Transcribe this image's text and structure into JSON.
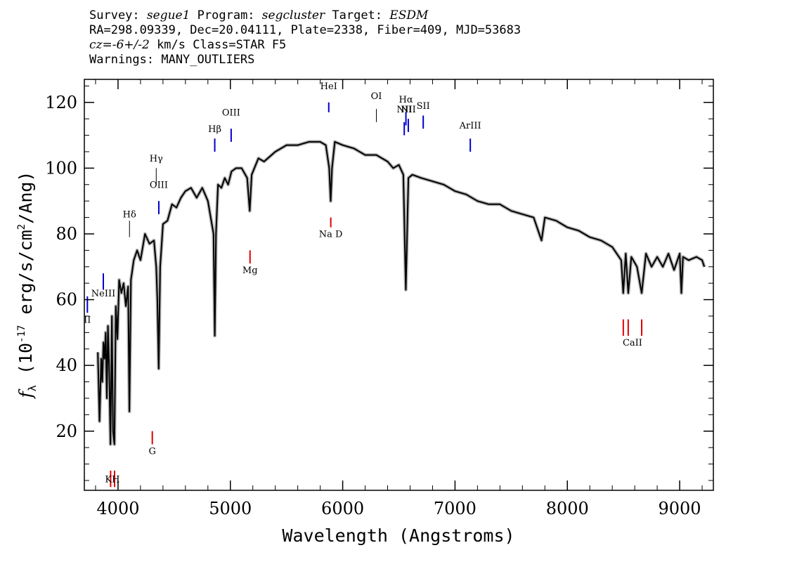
{
  "header": {
    "line1": {
      "survey_label": "Survey:",
      "survey": "segue1",
      "program_label": "Program:",
      "program": "segcluster",
      "target_label": "Target:",
      "target": "ESDM"
    },
    "line2": "RA=298.09339, Dec=20.04111, Plate=2338, Fiber=409, MJD=53683",
    "line3": {
      "cz": "cz=-6+/-2",
      "rest": " km/s Class=STAR F5"
    },
    "line4": "Warnings: MANY_OUTLIERS"
  },
  "colors": {
    "spectrum": "#000000",
    "error": "#b4b4b4",
    "emission": "#0000cc",
    "absorption": "#dd0000"
  },
  "chart_data": {
    "type": "line",
    "xlabel": "Wavelength (Angstroms)",
    "ylabel": "f_λ (10^-17 erg/s/cm^2/Ang)",
    "xlim": [
      3700,
      9300
    ],
    "ylim": [
      2,
      127
    ],
    "x_ticks": [
      4000,
      5000,
      6000,
      7000,
      8000,
      9000
    ],
    "y_ticks": [
      20,
      40,
      60,
      80,
      100,
      120
    ],
    "grid": false,
    "series": [
      {
        "x": [
          3820,
          3835,
          3850,
          3860,
          3870,
          3880,
          3890,
          3900,
          3910,
          3920,
          3933,
          3945,
          3955,
          3968,
          3980,
          3995,
          4010,
          4030,
          4050,
          4070,
          4090,
          4101,
          4115,
          4140,
          4170,
          4200,
          4240,
          4280,
          4320,
          4340,
          4350,
          4362,
          4375,
          4400,
          4440,
          4480,
          4520,
          4560,
          4600,
          4650,
          4700,
          4750,
          4800,
          4830,
          4850,
          4861,
          4872,
          4890,
          4920,
          4950,
          4980,
          5010,
          5050,
          5100,
          5150,
          5172,
          5190,
          5250,
          5300,
          5400,
          5500,
          5600,
          5700,
          5800,
          5850,
          5880,
          5893,
          5905,
          5930,
          6000,
          6100,
          6200,
          6300,
          6400,
          6450,
          6500,
          6540,
          6562,
          6585,
          6620,
          6700,
          6800,
          6900,
          7000,
          7100,
          7200,
          7300,
          7400,
          7500,
          7600,
          7700,
          7770,
          7800,
          7900,
          8000,
          8100,
          8200,
          8300,
          8400,
          8480,
          8498,
          8520,
          8542,
          8570,
          8620,
          8662,
          8700,
          8750,
          8800,
          8850,
          8900,
          8950,
          9000,
          9015,
          9030,
          9080,
          9150,
          9200,
          9220
        ],
        "y": [
          44,
          23,
          42,
          35,
          47,
          42,
          50,
          30,
          52,
          40,
          16,
          55,
          20,
          16,
          58,
          48,
          66,
          62,
          65,
          58,
          64,
          26,
          66,
          72,
          75,
          72,
          80,
          77,
          78,
          70,
          60,
          39,
          70,
          83,
          84,
          89,
          88,
          91,
          93,
          94,
          91,
          94,
          90,
          84,
          80,
          49,
          80,
          95,
          94,
          97,
          95,
          99,
          100,
          100,
          97,
          87,
          98,
          103,
          102,
          105,
          107,
          107,
          108,
          108,
          107,
          100,
          90,
          100,
          108,
          107,
          106,
          104,
          104,
          102,
          100,
          101,
          98,
          63,
          97,
          98,
          97,
          96,
          95,
          93,
          92,
          90,
          89,
          89,
          87,
          86,
          85,
          78,
          85,
          84,
          82,
          81,
          79,
          78,
          76,
          72,
          62,
          74,
          62,
          73,
          70,
          62,
          74,
          70,
          73,
          70,
          74,
          69,
          74,
          62,
          73,
          72,
          73,
          72,
          70
        ]
      }
    ],
    "emission_lines": [
      {
        "label": "MgII",
        "display": "II",
        "x": 3727
      },
      {
        "label": "NeIII",
        "x": 3869
      },
      {
        "label": "Hδ",
        "x": 4102
      },
      {
        "label": "Hγ",
        "x": 4340
      },
      {
        "label": "OIII",
        "x": 4363
      },
      {
        "label": "Hβ",
        "x": 4861
      },
      {
        "label": "OIII",
        "x": 5007
      },
      {
        "label": "HeI",
        "x": 5876
      },
      {
        "label": "OI",
        "x": 6300
      },
      {
        "label": "NII",
        "x": 6548
      },
      {
        "label": "Hα",
        "x": 6563
      },
      {
        "label": "NII",
        "x": 6584
      },
      {
        "label": "SII",
        "x": 6717
      },
      {
        "label": "ArIII",
        "x": 7136
      }
    ],
    "absorption_lines": [
      {
        "label": "K",
        "x": 3934
      },
      {
        "label": "H",
        "x": 3969
      },
      {
        "label": "G",
        "x": 4305
      },
      {
        "label": "Mg",
        "x": 5175
      },
      {
        "label": "Na D",
        "x": 5894
      },
      {
        "label": "CaII",
        "x": 8498
      },
      {
        "label": "CaII",
        "x": 8542
      },
      {
        "label": "CaII",
        "x": 8662
      }
    ]
  }
}
